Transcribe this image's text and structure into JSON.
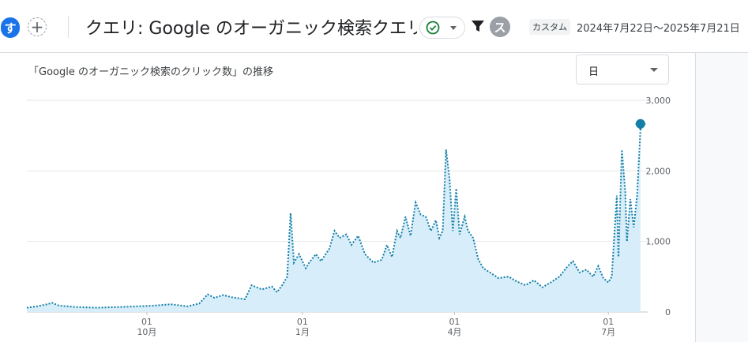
{
  "header": {
    "avatar_letter": "す",
    "add_symbol": "+",
    "title": "クエリ: Google のオーガニック検索クエリ",
    "user_letter": "ス",
    "range_badge": "カスタム",
    "range_text": "2024年7月22日～2025年7月21日",
    "icons": [
      "check-circle-icon",
      "chevron-down-icon",
      "filter-icon"
    ],
    "status_color": "#188038"
  },
  "card": {
    "title": "「Google のオーガニック検索のクリック数」の推移",
    "granularity": "日"
  },
  "chart_data": {
    "type": "area",
    "start_date": "2024-07-22",
    "end_date": "2025-07-21",
    "line_color": "#137ea6",
    "fill_color": "#d7eefa",
    "ylim": [
      0,
      3000
    ],
    "y_ticks": [
      "0",
      "1,000",
      "2,000",
      "3,000"
    ],
    "x_ticks": [
      {
        "date": "2024-10-01",
        "day": "01",
        "month": "10月"
      },
      {
        "date": "2025-01-01",
        "day": "01",
        "month": "1月"
      },
      {
        "date": "2025-04-01",
        "day": "01",
        "month": "4月"
      },
      {
        "date": "2025-07-01",
        "day": "01",
        "month": "7月"
      }
    ],
    "series": [
      {
        "points": [
          [
            "2024-07-22",
            60
          ],
          [
            "2024-07-28",
            80
          ],
          [
            "2024-08-03",
            110
          ],
          [
            "2024-08-06",
            130
          ],
          [
            "2024-08-10",
            90
          ],
          [
            "2024-08-20",
            70
          ],
          [
            "2024-09-01",
            60
          ],
          [
            "2024-09-15",
            70
          ],
          [
            "2024-09-25",
            80
          ],
          [
            "2024-10-05",
            90
          ],
          [
            "2024-10-15",
            110
          ],
          [
            "2024-10-25",
            80
          ],
          [
            "2024-11-01",
            120
          ],
          [
            "2024-11-06",
            250
          ],
          [
            "2024-11-10",
            200
          ],
          [
            "2024-11-15",
            240
          ],
          [
            "2024-11-20",
            210
          ],
          [
            "2024-11-28",
            180
          ],
          [
            "2024-12-02",
            380
          ],
          [
            "2024-12-08",
            320
          ],
          [
            "2024-12-14",
            360
          ],
          [
            "2024-12-17",
            280
          ],
          [
            "2024-12-20",
            380
          ],
          [
            "2024-12-23",
            500
          ],
          [
            "2024-12-25",
            1400
          ],
          [
            "2024-12-27",
            700
          ],
          [
            "2024-12-30",
            820
          ],
          [
            "2025-01-03",
            620
          ],
          [
            "2025-01-05",
            700
          ],
          [
            "2025-01-09",
            820
          ],
          [
            "2025-01-12",
            720
          ],
          [
            "2025-01-17",
            900
          ],
          [
            "2025-01-20",
            1150
          ],
          [
            "2025-01-23",
            1050
          ],
          [
            "2025-01-27",
            1100
          ],
          [
            "2025-01-30",
            950
          ],
          [
            "2025-02-03",
            1080
          ],
          [
            "2025-02-07",
            820
          ],
          [
            "2025-02-12",
            700
          ],
          [
            "2025-02-17",
            740
          ],
          [
            "2025-02-20",
            950
          ],
          [
            "2025-02-23",
            780
          ],
          [
            "2025-02-26",
            1150
          ],
          [
            "2025-02-28",
            1050
          ],
          [
            "2025-03-03",
            1350
          ],
          [
            "2025-03-06",
            1080
          ],
          [
            "2025-03-09",
            1550
          ],
          [
            "2025-03-12",
            1380
          ],
          [
            "2025-03-15",
            1350
          ],
          [
            "2025-03-18",
            1150
          ],
          [
            "2025-03-21",
            1300
          ],
          [
            "2025-03-23",
            1050
          ],
          [
            "2025-03-25",
            1150
          ],
          [
            "2025-03-27",
            2300
          ],
          [
            "2025-03-29",
            1900
          ],
          [
            "2025-03-31",
            1150
          ],
          [
            "2025-04-02",
            1750
          ],
          [
            "2025-04-04",
            1100
          ],
          [
            "2025-04-07",
            1350
          ],
          [
            "2025-04-09",
            1150
          ],
          [
            "2025-04-12",
            1050
          ],
          [
            "2025-04-15",
            750
          ],
          [
            "2025-04-18",
            620
          ],
          [
            "2025-04-22",
            560
          ],
          [
            "2025-04-27",
            480
          ],
          [
            "2025-05-03",
            500
          ],
          [
            "2025-05-08",
            430
          ],
          [
            "2025-05-13",
            380
          ],
          [
            "2025-05-18",
            450
          ],
          [
            "2025-05-23",
            350
          ],
          [
            "2025-05-28",
            420
          ],
          [
            "2025-06-02",
            500
          ],
          [
            "2025-06-07",
            650
          ],
          [
            "2025-06-10",
            720
          ],
          [
            "2025-06-14",
            560
          ],
          [
            "2025-06-18",
            600
          ],
          [
            "2025-06-22",
            500
          ],
          [
            "2025-06-25",
            650
          ],
          [
            "2025-06-28",
            480
          ],
          [
            "2025-07-01",
            420
          ],
          [
            "2025-07-03",
            500
          ],
          [
            "2025-07-06",
            1650
          ],
          [
            "2025-07-07",
            780
          ],
          [
            "2025-07-09",
            2300
          ],
          [
            "2025-07-11",
            1700
          ],
          [
            "2025-07-12",
            1000
          ],
          [
            "2025-07-14",
            1600
          ],
          [
            "2025-07-16",
            1200
          ],
          [
            "2025-07-18",
            1650
          ],
          [
            "2025-07-20",
            2600
          ]
        ]
      }
    ]
  }
}
